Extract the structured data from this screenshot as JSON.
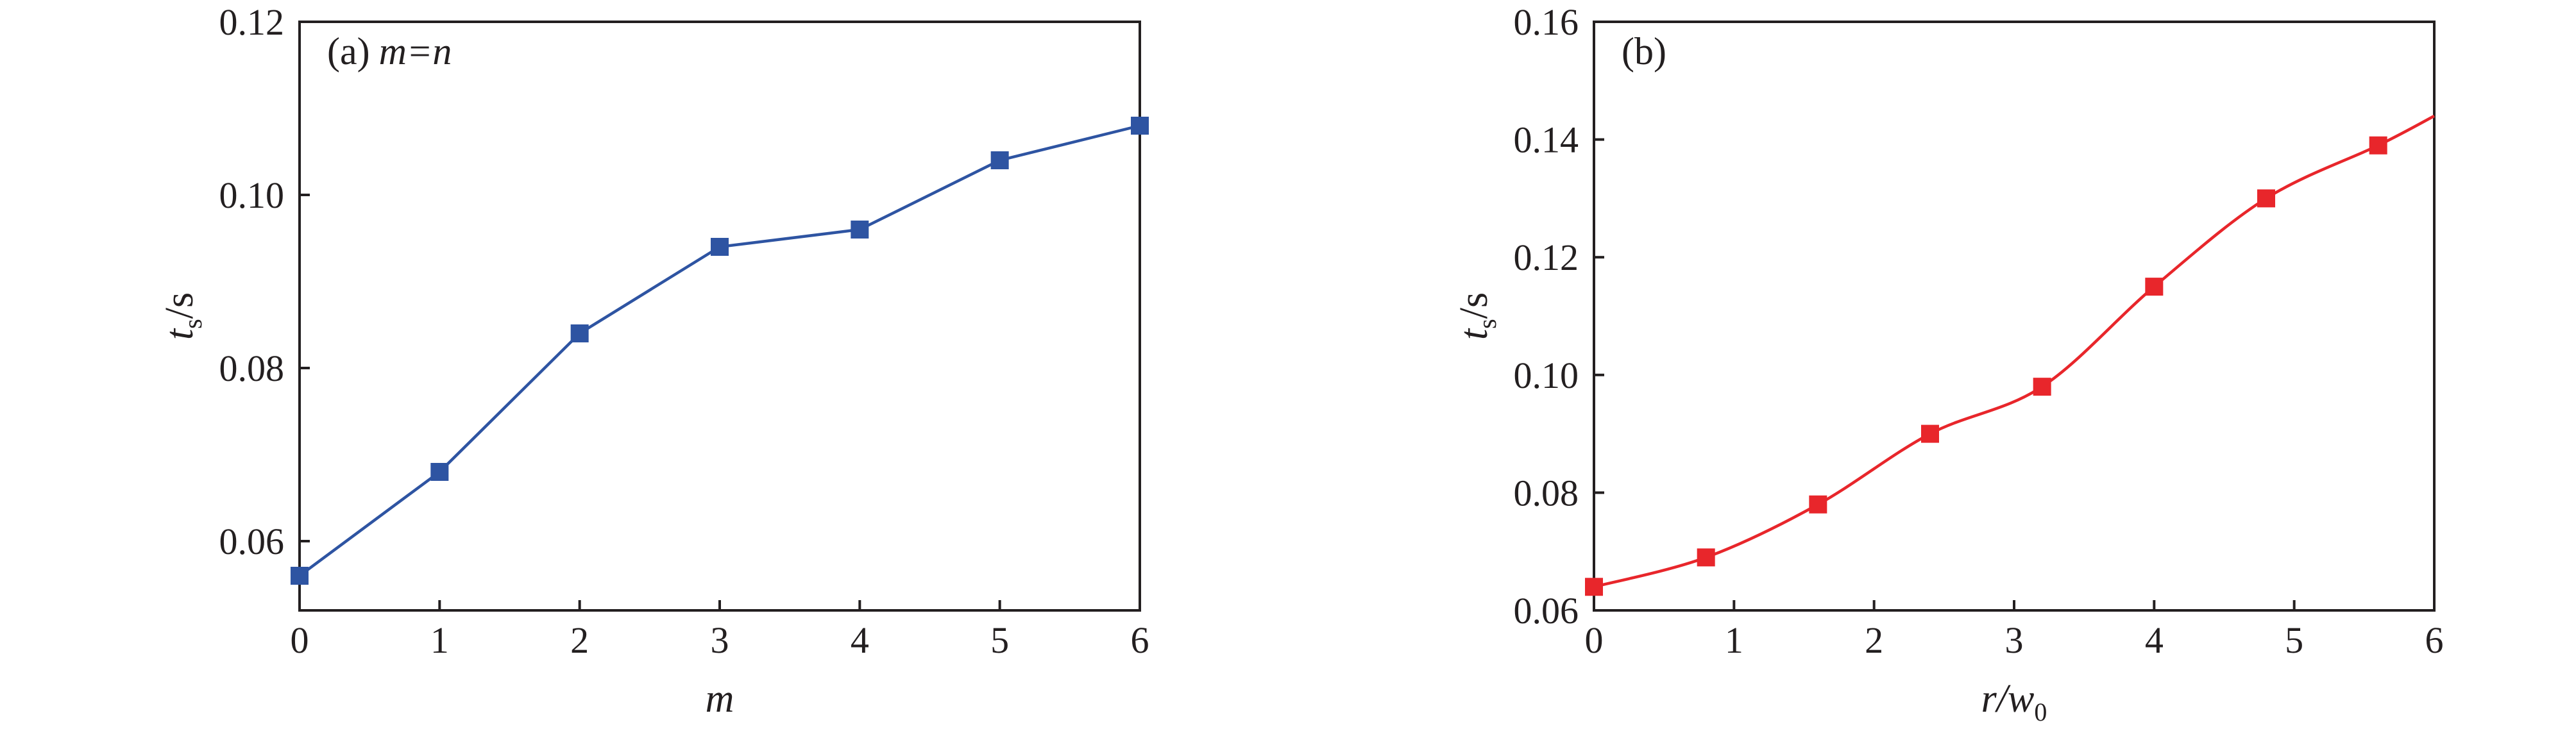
{
  "chart_data": [
    {
      "type": "line",
      "panel_label": "(a)",
      "panel_condition": "m=n",
      "x": [
        0,
        1,
        2,
        3,
        4,
        5,
        6
      ],
      "series": [
        {
          "values": [
            0.056,
            0.068,
            0.084,
            0.094,
            0.096,
            0.104,
            0.108
          ],
          "color": "#2e54a2",
          "marker": "square"
        }
      ],
      "xlabel": "m",
      "ylabel_main": "t",
      "ylabel_sub": "s",
      "ylabel_unit": "/s",
      "xlim": [
        0,
        6
      ],
      "ylim": [
        0.052,
        0.12
      ],
      "xticks": [
        0,
        1,
        2,
        3,
        4,
        5,
        6
      ],
      "xtick_labels": [
        "0",
        "1",
        "2",
        "3",
        "4",
        "5",
        "6"
      ],
      "yticks": [
        0.06,
        0.08,
        0.1,
        0.12
      ],
      "ytick_labels": [
        "0.06",
        "0.08",
        "0.10",
        "0.12"
      ],
      "grid": false,
      "smooth": false
    },
    {
      "type": "line",
      "panel_label": "(b)",
      "x": [
        0,
        0.8,
        1.6,
        2.4,
        3.2,
        4.0,
        4.8,
        5.6
      ],
      "series": [
        {
          "values": [
            0.064,
            0.069,
            0.078,
            0.09,
            0.098,
            0.115,
            0.13,
            0.139
          ],
          "color": "#e8262b",
          "marker": "square",
          "line_end": [
            6,
            0.144
          ]
        }
      ],
      "xlabel_main": "r",
      "xlabel_mid": "/w",
      "xlabel_sub": "0",
      "ylabel_main": "t",
      "ylabel_sub": "s",
      "ylabel_unit": "/s",
      "xlim": [
        0,
        6
      ],
      "ylim": [
        0.06,
        0.16
      ],
      "xticks": [
        0,
        1,
        2,
        3,
        4,
        5,
        6
      ],
      "xtick_labels": [
        "0",
        "1",
        "2",
        "3",
        "4",
        "5",
        "6"
      ],
      "yticks": [
        0.06,
        0.08,
        0.1,
        0.12,
        0.14,
        0.16
      ],
      "ytick_labels": [
        "0.06",
        "0.08",
        "0.10",
        "0.12",
        "0.14",
        "0.16"
      ],
      "grid": false,
      "smooth": true
    }
  ]
}
